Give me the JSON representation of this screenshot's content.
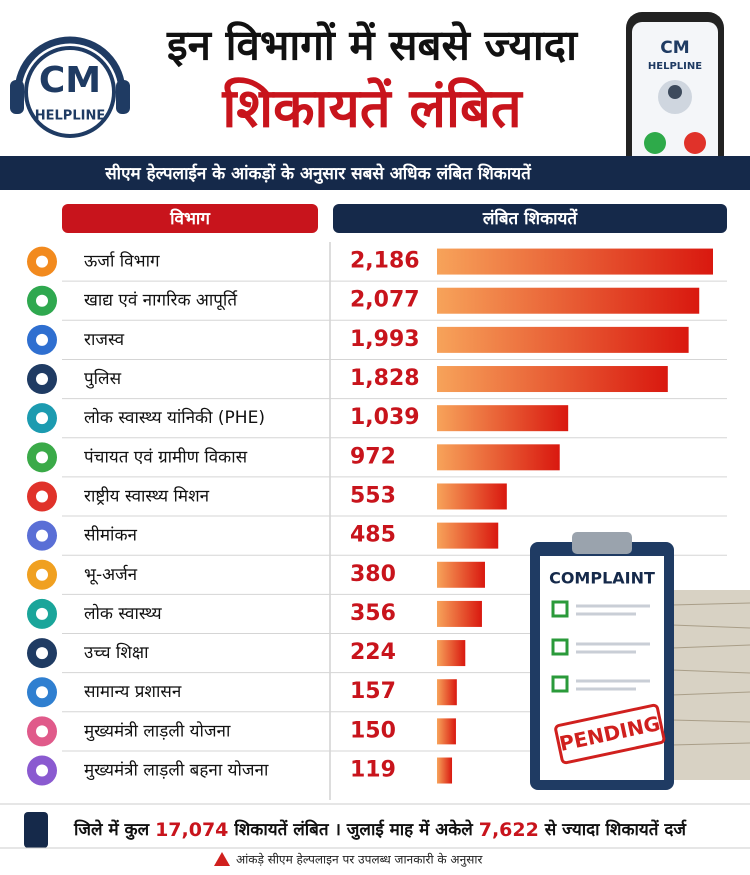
{
  "header": {
    "title_line1": "इन विभागों में सबसे ज्यादा",
    "title_line2": "शिकायतें लंबित",
    "subtitle": "सीएम हेल्पलाईन के आंकड़ों के अनुसार सबसे अधिक लंबित शिकायतें",
    "logo_top": "CM",
    "logo_bottom": "HELPLINE",
    "phone_top": "CM",
    "phone_bottom": "HELPLINE"
  },
  "chart_data": {
    "type": "bar",
    "orientation": "horizontal",
    "category_header": "विभाग",
    "value_header": "लंबित शिकायतें",
    "categories": [
      "ऊर्जा विभाग",
      "खाद्य एवं नागरिक आपूर्ति",
      "राजस्व",
      "पुलिस",
      "लोक स्वास्थ्य यांनिकी (PHE)",
      "पंचायत एवं ग्रामीण विकास",
      "राष्ट्रीय स्वास्थ्य मिशन",
      "सीमांकन",
      "भू-अर्जन",
      "लोक स्वास्थ्य",
      "उच्च शिक्षा",
      "सामान्य प्रशासन",
      "मुख्यमंत्री लाड़ली योजना",
      "मुख्यमंत्री लाड़ली बहना योजना"
    ],
    "values": [
      2186,
      2077,
      1993,
      1828,
      1039,
      972,
      553,
      485,
      380,
      356,
      224,
      157,
      150,
      119
    ],
    "value_labels": [
      "2,186",
      "2,077",
      "1,993",
      "1,828",
      "1,039",
      "972",
      "553",
      "485",
      "380",
      "356",
      "224",
      "157",
      "150",
      "119"
    ],
    "color": "#d9180f"
  },
  "illustration": {
    "clipboard_title": "COMPLAINT",
    "stamp": "PENDING"
  },
  "footer": {
    "summary": [
      "जिले में कुल",
      "17,074",
      "शिकायतें लंबित । जुलाई माह में अकेले",
      "7,622",
      "से ज्यादा शिकायतें दर्ज"
    ],
    "note": "आंकड़े सीएम हेल्पलाइन पर उपलब्ध जानकारी के अनुसार"
  }
}
